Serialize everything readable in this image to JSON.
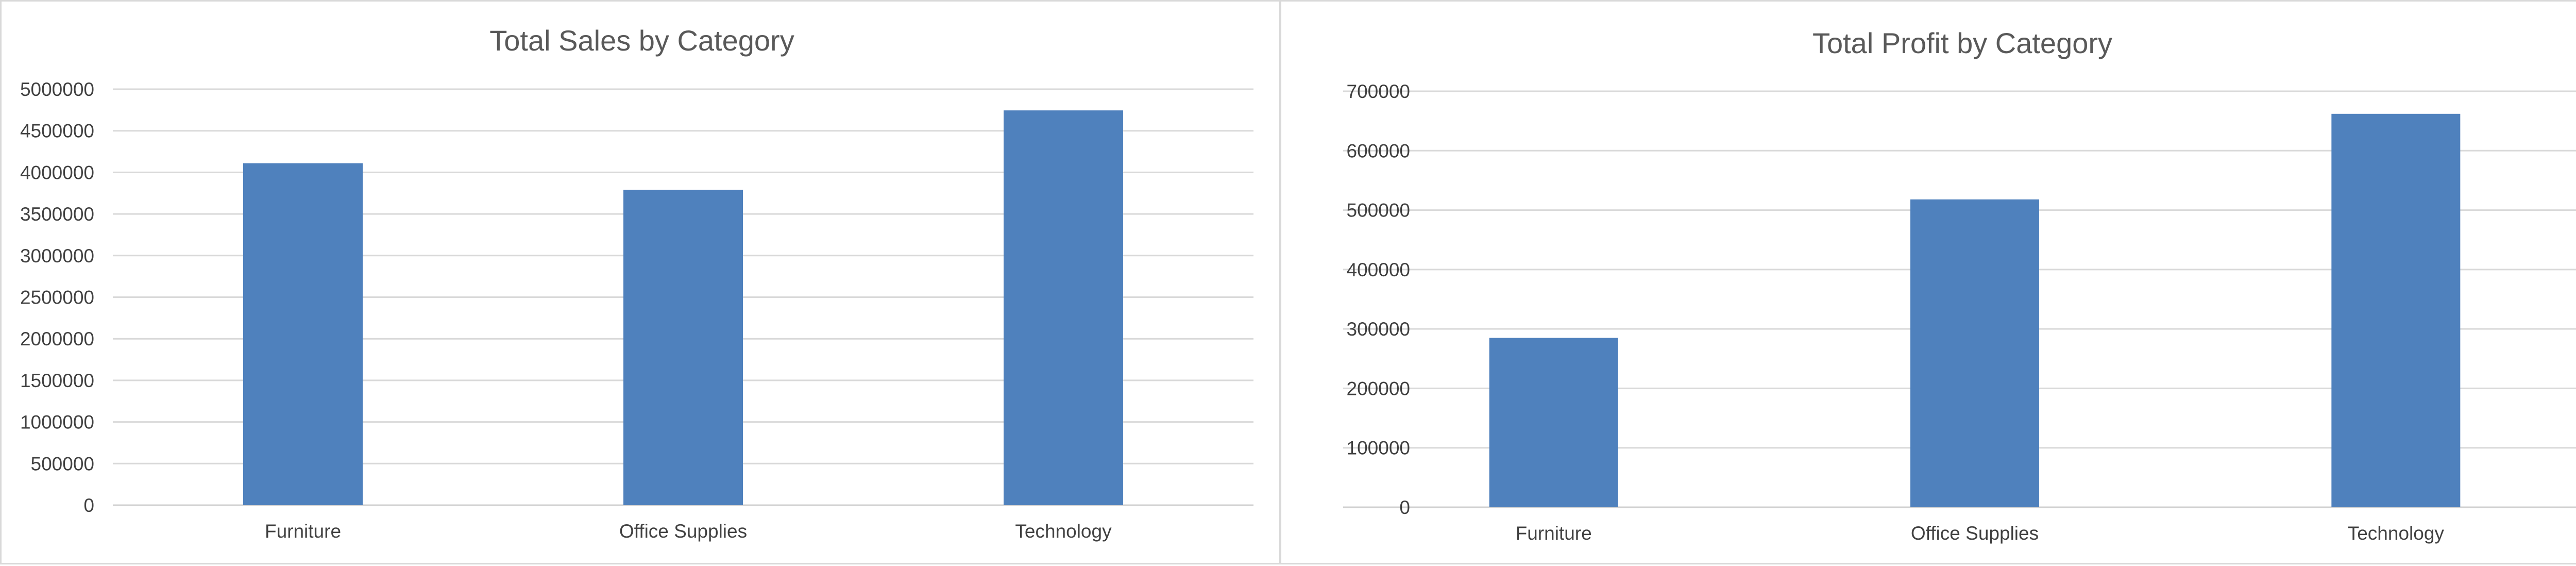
{
  "chart_data": [
    {
      "type": "bar",
      "title": "Total Sales by Category",
      "categories": [
        "Furniture",
        "Office Supplies",
        "Technology"
      ],
      "values": [
        4110000,
        3790000,
        4745000
      ],
      "ylim": [
        0,
        5000000
      ],
      "yticks": [
        "0",
        "500000",
        "1000000",
        "1500000",
        "2000000",
        "2500000",
        "3000000",
        "3500000",
        "4000000",
        "4500000",
        "5000000"
      ],
      "grid": true,
      "bar_color": "#4f81bd"
    },
    {
      "type": "bar",
      "title": "Total Profit by Category",
      "categories": [
        "Furniture",
        "Office Supplies",
        "Technology"
      ],
      "values": [
        285000,
        518000,
        662000
      ],
      "ylim": [
        0,
        700000
      ],
      "yticks": [
        "0",
        "100000",
        "200000",
        "300000",
        "400000",
        "500000",
        "600000",
        "700000"
      ],
      "grid": true,
      "bar_color": "#4f81bd"
    }
  ]
}
